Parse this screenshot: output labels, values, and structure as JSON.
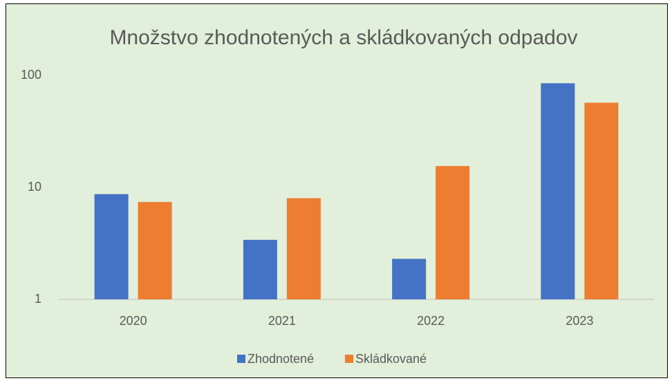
{
  "chart_data": {
    "type": "bar",
    "title": "Množstvo zhodnotených a skládkovaných odpadov",
    "categories": [
      "2020",
      "2021",
      "2022",
      "2023"
    ],
    "series": [
      {
        "name": "Zhodnotené",
        "color": "#4472c4",
        "values": [
          8.7,
          3.4,
          2.3,
          85
        ]
      },
      {
        "name": "Skládkované",
        "color": "#ed7d31",
        "values": [
          7.4,
          8.0,
          15.5,
          57
        ]
      }
    ],
    "ylim": [
      1,
      100
    ],
    "yticks": [
      1,
      10,
      100
    ],
    "log": true,
    "grid": false,
    "legend": "bottom"
  }
}
